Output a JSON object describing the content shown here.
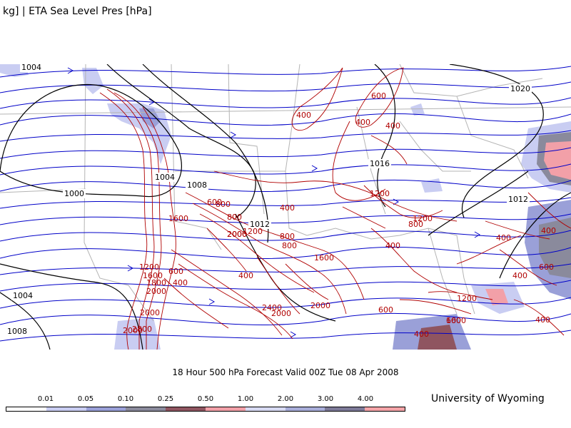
{
  "header": {
    "title": "kg] | ETA Sea Level Pres [hPa]"
  },
  "footer": {
    "valid_text": "18 Hour 500 hPa Forecast Valid 00Z Tue 08 Apr 2008",
    "credit": "University of Wyoming"
  },
  "legend": {
    "labels": [
      "0.01",
      "0.05",
      "0.10",
      "0.25",
      "0.50",
      "1.00",
      "2.00",
      "3.00",
      "4.00"
    ],
    "colors": [
      "#ffffff",
      "#c9cdf2",
      "#9aa0d8",
      "#8a8a9c",
      "#8f5560",
      "#f2a0a8",
      "#d7daf3",
      "#a8add9",
      "#7d7a98",
      "#f5a4a8"
    ]
  },
  "isobars": {
    "color": "#000000",
    "labels": [
      "1004",
      "1020",
      "1016",
      "1004",
      "1000",
      "1008",
      "1012",
      "1012",
      "1004",
      "1008"
    ]
  },
  "thickness": {
    "color": "#b00000",
    "labels": [
      "400",
      "600",
      "400",
      "400",
      "1200",
      "400",
      "1200",
      "800",
      "400",
      "800",
      "1600",
      "2000",
      "600",
      "800",
      "800",
      "2000",
      "1200",
      "800",
      "1600",
      "600",
      "1200",
      "1600",
      "1800",
      "2000",
      "400",
      "400",
      "2000",
      "2400",
      "2800",
      "2000",
      "2000",
      "600",
      "2000",
      "1200",
      "600",
      "1600",
      "400",
      "400",
      "400",
      "400",
      "600",
      "400"
    ]
  },
  "colors": {
    "streamlines": "#0000c8",
    "borders": "#b4b4b4"
  }
}
